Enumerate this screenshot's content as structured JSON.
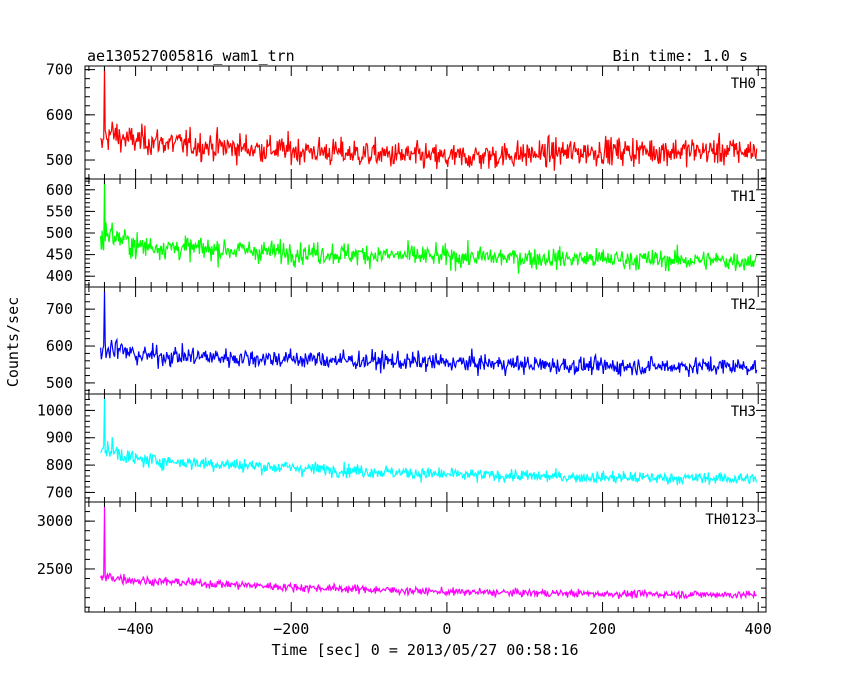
{
  "chart_data": {
    "type": "line",
    "title": "ae130527005816_wam1_trn",
    "subtitle": "Bin time: 1.0 s",
    "xlabel": "Time [sec] 0 = 2013/05/27 00:58:16",
    "ylabel": "Counts/sec",
    "xlim": [
      -465,
      410
    ],
    "x_ticks": [
      -400,
      -200,
      0,
      200,
      400
    ],
    "x_tick_labels": [
      "−400",
      "−200",
      "0",
      "200",
      "400"
    ],
    "x_range": [
      -445,
      398
    ],
    "bin_time_s": 1.0,
    "grid": false,
    "legend": "none",
    "panels": [
      {
        "name": "TH0",
        "color": "#ff0000",
        "ylim": [
          458,
          708
        ],
        "y_ticks": [
          500,
          600,
          700
        ],
        "y_tick_labels": [
          "500",
          "600",
          "700"
        ],
        "spike": {
          "x": -440,
          "y": 705
        },
        "features": [
          [
            -445,
            525,
            45
          ],
          [
            -435,
            560,
            50
          ],
          [
            -410,
            545,
            40
          ],
          [
            -300,
            530,
            40
          ],
          [
            0,
            505,
            38
          ],
          [
            200,
            520,
            40
          ],
          [
            398,
            520,
            40
          ]
        ]
      },
      {
        "name": "TH1",
        "color": "#00ff00",
        "ylim": [
          375,
          625
        ],
        "y_ticks": [
          400,
          450,
          500,
          550,
          600
        ],
        "y_tick_labels": [
          "400",
          "450",
          "500",
          "550",
          "600"
        ],
        "spike": {
          "x": -440,
          "y": 620
        },
        "features": [
          [
            -445,
            480,
            40
          ],
          [
            -435,
            500,
            45
          ],
          [
            -400,
            470,
            35
          ],
          [
            -200,
            455,
            33
          ],
          [
            0,
            445,
            32
          ],
          [
            200,
            440,
            30
          ],
          [
            398,
            435,
            30
          ]
        ]
      },
      {
        "name": "TH2",
        "color": "#0000ff",
        "ylim": [
          470,
          760
        ],
        "y_ticks": [
          500,
          600,
          700
        ],
        "y_tick_labels": [
          "500",
          "600",
          "700"
        ],
        "spike": {
          "x": -440,
          "y": 750
        },
        "features": [
          [
            -445,
            585,
            38
          ],
          [
            -435,
            600,
            40
          ],
          [
            -400,
            575,
            35
          ],
          [
            -200,
            565,
            33
          ],
          [
            0,
            555,
            32
          ],
          [
            200,
            545,
            30
          ],
          [
            398,
            545,
            30
          ]
        ]
      },
      {
        "name": "TH3",
        "color": "#00ffff",
        "ylim": [
          665,
          1060
        ],
        "y_ticks": [
          700,
          800,
          900,
          1000
        ],
        "y_tick_labels": [
          "700",
          "800",
          "900",
          "1000"
        ],
        "spike": {
          "x": -440,
          "y": 1050
        },
        "features": [
          [
            -445,
            840,
            40
          ],
          [
            -435,
            860,
            45
          ],
          [
            -400,
            820,
            35
          ],
          [
            -200,
            790,
            32
          ],
          [
            0,
            765,
            30
          ],
          [
            200,
            755,
            28
          ],
          [
            398,
            750,
            28
          ]
        ]
      },
      {
        "name": "TH0123",
        "color": "#ff00ff",
        "ylim": [
          2050,
          3200
        ],
        "y_ticks": [
          2500,
          3000
        ],
        "y_tick_labels": [
          "2500",
          "3000"
        ],
        "spike": {
          "x": -440,
          "y": 3150
        },
        "features": [
          [
            -445,
            2390,
            70
          ],
          [
            -435,
            2420,
            75
          ],
          [
            -400,
            2380,
            60
          ],
          [
            -200,
            2310,
            55
          ],
          [
            0,
            2260,
            50
          ],
          [
            200,
            2240,
            50
          ],
          [
            398,
            2230,
            50
          ]
        ]
      }
    ]
  }
}
